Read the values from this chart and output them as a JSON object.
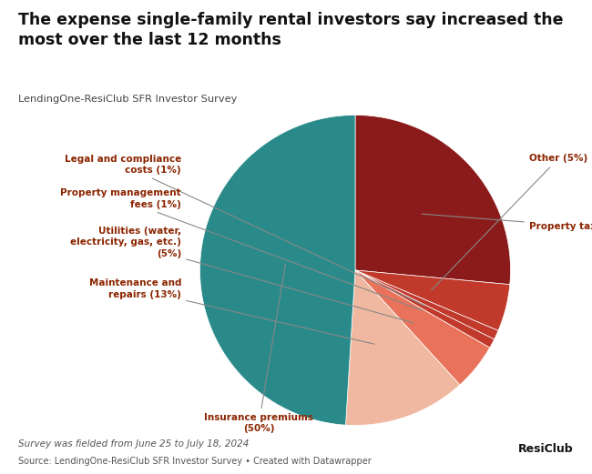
{
  "title": "The expense single-family rental investors say increased the\nmost over the last 12 months",
  "subtitle": "LendingOne-ResiClub SFR Investor Survey",
  "footer_line1": "Survey was fielded from June 25 to July 18, 2024",
  "footer_line2": "Source: LendingOne-ResiClub SFR Investor Survey • Created with Datawrapper",
  "slices": [
    {
      "label": "Property taxes",
      "pct": 27,
      "color": "#8b1a1a"
    },
    {
      "label": "Other",
      "pct": 5,
      "color": "#c0392b"
    },
    {
      "label": "Legal and compliance\ncosts",
      "pct": 1,
      "color": "#c0392b"
    },
    {
      "label": "Property management\nfees",
      "pct": 1,
      "color": "#c0392b"
    },
    {
      "label": "Utilities (water,\nelectricity, gas, etc.)",
      "pct": 5,
      "color": "#e8735a"
    },
    {
      "label": "Maintenance and\nrepairs",
      "pct": 13,
      "color": "#f0b8a0"
    },
    {
      "label": "Insurance premiums",
      "pct": 50,
      "color": "#2a8a8a"
    }
  ],
  "label_color": "#8b2500",
  "background_color": "#ffffff"
}
